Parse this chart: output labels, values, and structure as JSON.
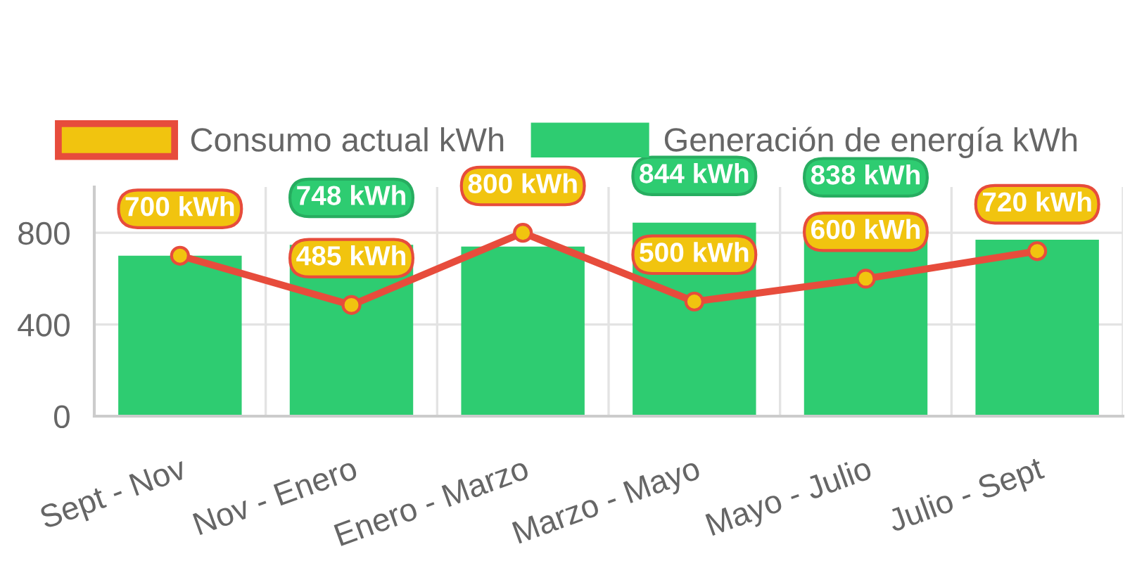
{
  "chart_data": {
    "type": "bar",
    "categories": [
      "Sept - Nov",
      "Nov - Enero",
      "Enero - Marzo",
      "Marzo - Mayo",
      "Mayo - Julio",
      "Julio - Sept"
    ],
    "series": [
      {
        "name": "Consumo actual kWh",
        "type": "line",
        "color": "#e74c3c",
        "colors": [
          "#f1c40f",
          "#f1c40f",
          "#f1c40f",
          "#f1c40f",
          "#f1c40f",
          "#f1c40f"
        ],
        "values": [
          700,
          485,
          800,
          500,
          600,
          720
        ],
        "value_labels": [
          "700 kWh",
          "485 kWh",
          "800 kWh",
          "500 kWh",
          "600 kWh",
          "720 kWh"
        ]
      },
      {
        "name": "Generación de energía kWh",
        "color": "#2ecc71",
        "values": [
          700,
          748,
          740,
          844,
          838,
          770
        ],
        "value_labels": [
          null,
          "748 kWh",
          null,
          "844 kWh",
          "838 kWh",
          null
        ]
      }
    ],
    "ylim": [
      0,
      1000
    ],
    "yticks": [
      0,
      400,
      800
    ],
    "grid": true,
    "legend": "top",
    "marker": "circle"
  }
}
